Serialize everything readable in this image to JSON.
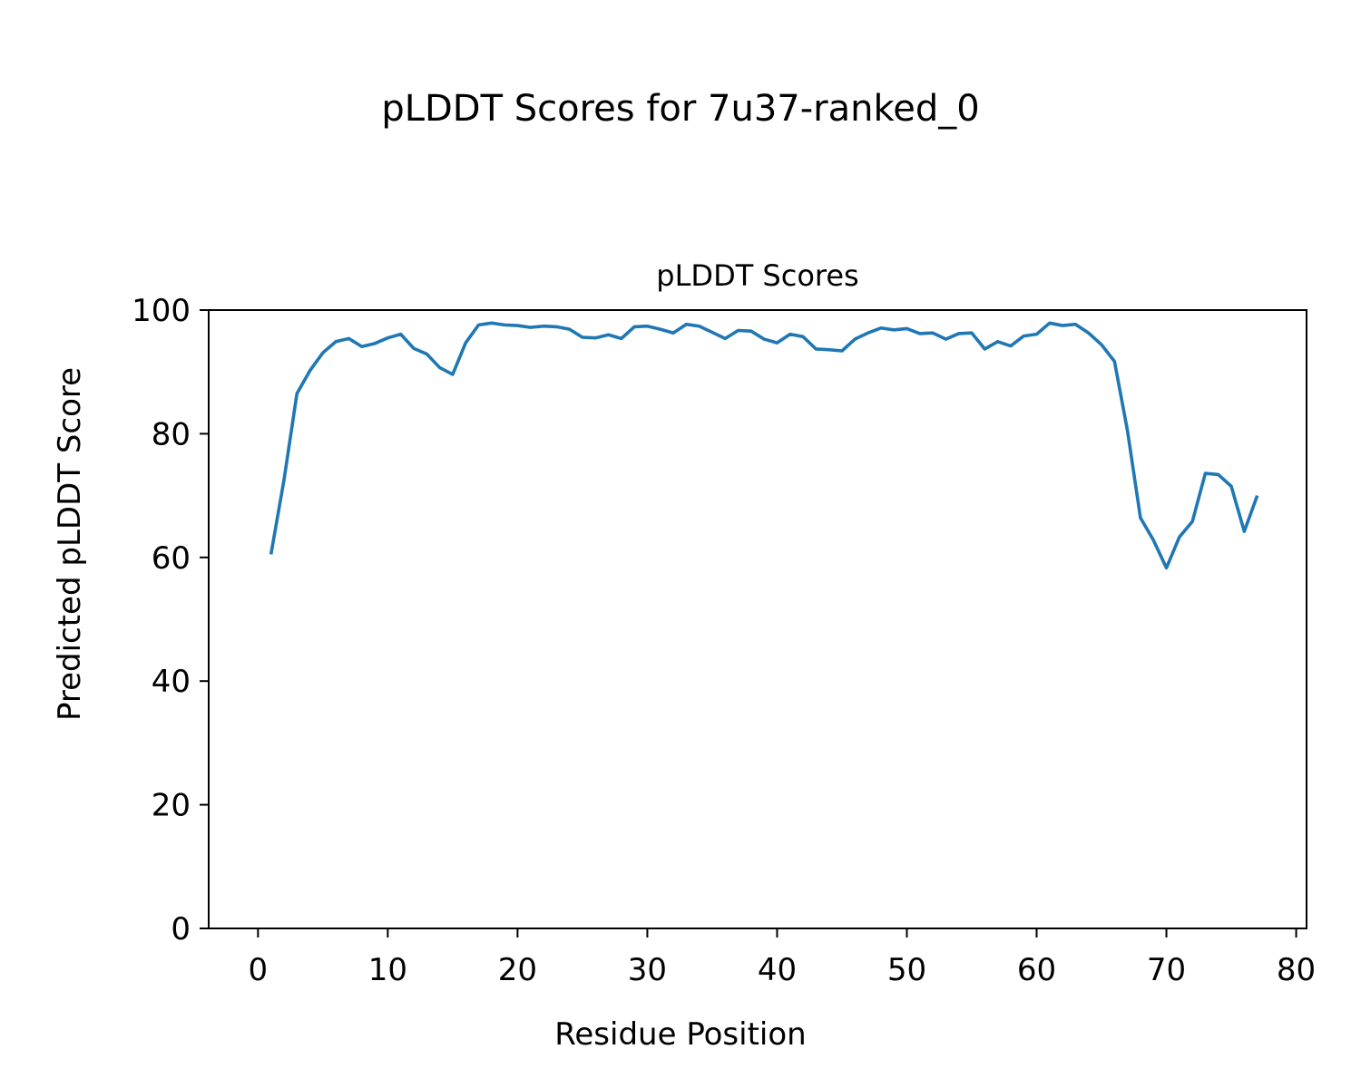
{
  "figure": {
    "suptitle": "pLDDT Scores for 7u37-ranked_0"
  },
  "chart_data": {
    "type": "line",
    "title": "pLDDT Scores",
    "xlabel": "Residue Position",
    "ylabel": "Predicted pLDDT Score",
    "xlim": [
      -3.8,
      80.8
    ],
    "ylim": [
      0,
      100
    ],
    "xticks": [
      0,
      10,
      20,
      30,
      40,
      50,
      60,
      70,
      80
    ],
    "yticks": [
      0,
      20,
      40,
      60,
      80,
      100
    ],
    "grid": false,
    "legend": "none",
    "color": "#1f77b4",
    "series": [
      {
        "x": [
          1,
          2,
          3,
          4,
          5,
          6,
          7,
          8,
          9,
          10,
          11,
          12,
          13,
          14,
          15,
          16,
          17,
          18,
          19,
          20,
          21,
          22,
          23,
          24,
          25,
          26,
          27,
          28,
          29,
          30,
          31,
          32,
          33,
          34,
          35,
          36,
          37,
          38,
          39,
          40,
          41,
          42,
          43,
          44,
          45,
          46,
          47,
          48,
          49,
          50,
          51,
          52,
          53,
          54,
          55,
          56,
          57,
          58,
          59,
          60,
          61,
          62,
          63,
          64,
          65,
          66,
          67,
          68,
          69,
          70,
          71,
          72,
          73,
          74,
          75,
          76,
          77
        ],
        "values": [
          60.5,
          72.5,
          86.5,
          90.2,
          93.1,
          94.9,
          95.4,
          94.1,
          94.6,
          95.5,
          96.1,
          93.8,
          92.9,
          90.7,
          89.6,
          94.7,
          97.6,
          97.9,
          97.6,
          97.5,
          97.2,
          97.4,
          97.3,
          96.9,
          95.6,
          95.5,
          96.0,
          95.4,
          97.3,
          97.4,
          96.9,
          96.3,
          97.7,
          97.4,
          96.4,
          95.4,
          96.7,
          96.6,
          95.3,
          94.7,
          96.1,
          95.7,
          93.7,
          93.6,
          93.4,
          95.3,
          96.3,
          97.1,
          96.8,
          97.0,
          96.2,
          96.3,
          95.3,
          96.2,
          96.3,
          93.7,
          94.9,
          94.2,
          95.8,
          96.1,
          97.9,
          97.5,
          97.7,
          96.3,
          94.4,
          91.7,
          80.5,
          66.4,
          62.8,
          58.3,
          63.3,
          65.8,
          73.6,
          73.4,
          71.5,
          64.2,
          70.0
        ]
      }
    ]
  }
}
